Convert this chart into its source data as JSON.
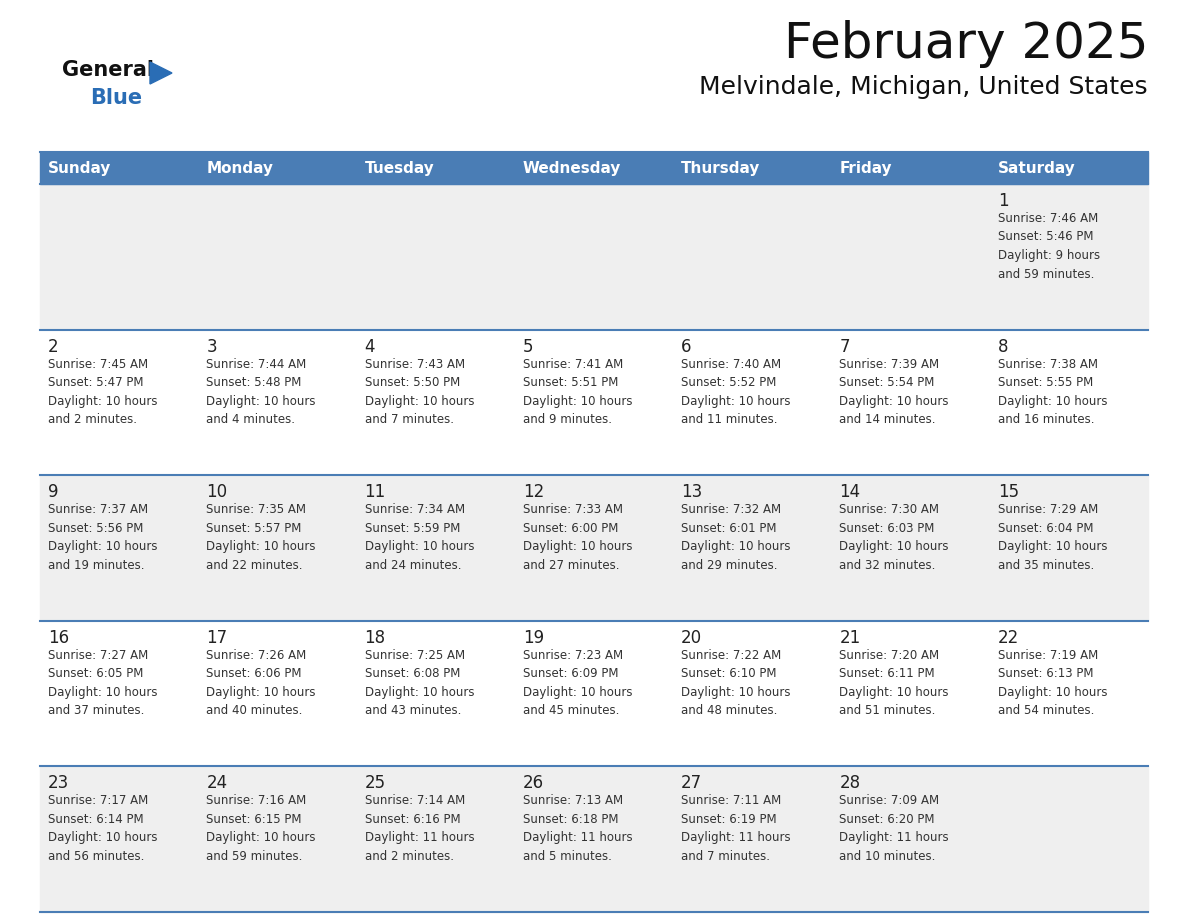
{
  "title": "February 2025",
  "subtitle": "Melvindale, Michigan, United States",
  "header_bg": "#4A7DB5",
  "header_text_color": "#FFFFFF",
  "day_names": [
    "Sunday",
    "Monday",
    "Tuesday",
    "Wednesday",
    "Thursday",
    "Friday",
    "Saturday"
  ],
  "row_bg_odd": "#EFEFEF",
  "row_bg_even": "#FFFFFF",
  "cell_border_color": "#4A7DB5",
  "day_num_color": "#222222",
  "info_color": "#333333",
  "title_color": "#111111",
  "subtitle_color": "#111111",
  "logo_general_color": "#111111",
  "logo_blue_color": "#2A6DB5",
  "weeks": [
    [
      {
        "day": "",
        "info": ""
      },
      {
        "day": "",
        "info": ""
      },
      {
        "day": "",
        "info": ""
      },
      {
        "day": "",
        "info": ""
      },
      {
        "day": "",
        "info": ""
      },
      {
        "day": "",
        "info": ""
      },
      {
        "day": "1",
        "info": "Sunrise: 7:46 AM\nSunset: 5:46 PM\nDaylight: 9 hours\nand 59 minutes."
      }
    ],
    [
      {
        "day": "2",
        "info": "Sunrise: 7:45 AM\nSunset: 5:47 PM\nDaylight: 10 hours\nand 2 minutes."
      },
      {
        "day": "3",
        "info": "Sunrise: 7:44 AM\nSunset: 5:48 PM\nDaylight: 10 hours\nand 4 minutes."
      },
      {
        "day": "4",
        "info": "Sunrise: 7:43 AM\nSunset: 5:50 PM\nDaylight: 10 hours\nand 7 minutes."
      },
      {
        "day": "5",
        "info": "Sunrise: 7:41 AM\nSunset: 5:51 PM\nDaylight: 10 hours\nand 9 minutes."
      },
      {
        "day": "6",
        "info": "Sunrise: 7:40 AM\nSunset: 5:52 PM\nDaylight: 10 hours\nand 11 minutes."
      },
      {
        "day": "7",
        "info": "Sunrise: 7:39 AM\nSunset: 5:54 PM\nDaylight: 10 hours\nand 14 minutes."
      },
      {
        "day": "8",
        "info": "Sunrise: 7:38 AM\nSunset: 5:55 PM\nDaylight: 10 hours\nand 16 minutes."
      }
    ],
    [
      {
        "day": "9",
        "info": "Sunrise: 7:37 AM\nSunset: 5:56 PM\nDaylight: 10 hours\nand 19 minutes."
      },
      {
        "day": "10",
        "info": "Sunrise: 7:35 AM\nSunset: 5:57 PM\nDaylight: 10 hours\nand 22 minutes."
      },
      {
        "day": "11",
        "info": "Sunrise: 7:34 AM\nSunset: 5:59 PM\nDaylight: 10 hours\nand 24 minutes."
      },
      {
        "day": "12",
        "info": "Sunrise: 7:33 AM\nSunset: 6:00 PM\nDaylight: 10 hours\nand 27 minutes."
      },
      {
        "day": "13",
        "info": "Sunrise: 7:32 AM\nSunset: 6:01 PM\nDaylight: 10 hours\nand 29 minutes."
      },
      {
        "day": "14",
        "info": "Sunrise: 7:30 AM\nSunset: 6:03 PM\nDaylight: 10 hours\nand 32 minutes."
      },
      {
        "day": "15",
        "info": "Sunrise: 7:29 AM\nSunset: 6:04 PM\nDaylight: 10 hours\nand 35 minutes."
      }
    ],
    [
      {
        "day": "16",
        "info": "Sunrise: 7:27 AM\nSunset: 6:05 PM\nDaylight: 10 hours\nand 37 minutes."
      },
      {
        "day": "17",
        "info": "Sunrise: 7:26 AM\nSunset: 6:06 PM\nDaylight: 10 hours\nand 40 minutes."
      },
      {
        "day": "18",
        "info": "Sunrise: 7:25 AM\nSunset: 6:08 PM\nDaylight: 10 hours\nand 43 minutes."
      },
      {
        "day": "19",
        "info": "Sunrise: 7:23 AM\nSunset: 6:09 PM\nDaylight: 10 hours\nand 45 minutes."
      },
      {
        "day": "20",
        "info": "Sunrise: 7:22 AM\nSunset: 6:10 PM\nDaylight: 10 hours\nand 48 minutes."
      },
      {
        "day": "21",
        "info": "Sunrise: 7:20 AM\nSunset: 6:11 PM\nDaylight: 10 hours\nand 51 minutes."
      },
      {
        "day": "22",
        "info": "Sunrise: 7:19 AM\nSunset: 6:13 PM\nDaylight: 10 hours\nand 54 minutes."
      }
    ],
    [
      {
        "day": "23",
        "info": "Sunrise: 7:17 AM\nSunset: 6:14 PM\nDaylight: 10 hours\nand 56 minutes."
      },
      {
        "day": "24",
        "info": "Sunrise: 7:16 AM\nSunset: 6:15 PM\nDaylight: 10 hours\nand 59 minutes."
      },
      {
        "day": "25",
        "info": "Sunrise: 7:14 AM\nSunset: 6:16 PM\nDaylight: 11 hours\nand 2 minutes."
      },
      {
        "day": "26",
        "info": "Sunrise: 7:13 AM\nSunset: 6:18 PM\nDaylight: 11 hours\nand 5 minutes."
      },
      {
        "day": "27",
        "info": "Sunrise: 7:11 AM\nSunset: 6:19 PM\nDaylight: 11 hours\nand 7 minutes."
      },
      {
        "day": "28",
        "info": "Sunrise: 7:09 AM\nSunset: 6:20 PM\nDaylight: 11 hours\nand 10 minutes."
      },
      {
        "day": "",
        "info": ""
      }
    ]
  ]
}
